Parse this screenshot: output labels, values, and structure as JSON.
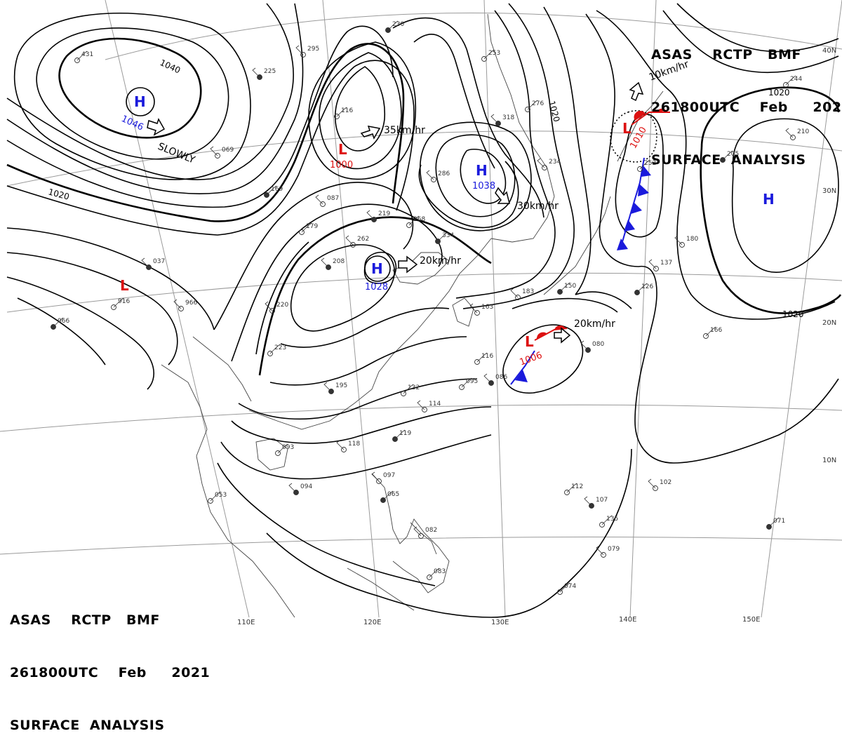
{
  "header": {
    "line1": "ASAS    RCTP   BMF",
    "line2": "261800UTC    Feb     2021",
    "line3": "SURFACE  ANALYSIS"
  },
  "lat_labels": [
    "40N",
    "30N",
    "20N",
    "10N"
  ],
  "lon_labels": [
    "110E",
    "120E",
    "130E",
    "140E",
    "150E"
  ],
  "isobar_labels": [
    "1040",
    "1020",
    "1020",
    "1020",
    "1020"
  ],
  "pressure_centers": [
    {
      "type": "H",
      "value": "1046"
    },
    {
      "type": "L",
      "value": "1000"
    },
    {
      "type": "H",
      "value": "1038"
    },
    {
      "type": "H",
      "value": "1028"
    },
    {
      "type": "L",
      "value": "1010"
    },
    {
      "type": "L",
      "value": "1006"
    },
    {
      "type": "H",
      "value": ""
    },
    {
      "type": "L",
      "value": ""
    }
  ],
  "movements": [
    "SLOWLY",
    "35km/hr",
    "30km/hr",
    "20km/hr",
    "10km/hr",
    "20km/hr"
  ],
  "station_numbers": [
    "230",
    "295",
    "431",
    "225",
    "116",
    "069",
    "169",
    "087",
    "179",
    "219",
    "268",
    "262",
    "334",
    "286",
    "253",
    "318",
    "276",
    "234",
    "205",
    "210",
    "244",
    "037",
    "916",
    "966",
    "066",
    "220",
    "223",
    "195",
    "132",
    "114",
    "119",
    "118",
    "093",
    "094",
    "053",
    "097",
    "065",
    "082",
    "083",
    "107",
    "112",
    "102",
    "071",
    "079",
    "074",
    "080",
    "166",
    "137",
    "126",
    "180",
    "095",
    "086",
    "116",
    "183",
    "150",
    "163",
    "252",
    "208",
    "135"
  ],
  "colors": {
    "high": "#1a1adc",
    "low": "#dd1111",
    "line": "#000000",
    "grid": "#999999",
    "coast": "#444444"
  }
}
